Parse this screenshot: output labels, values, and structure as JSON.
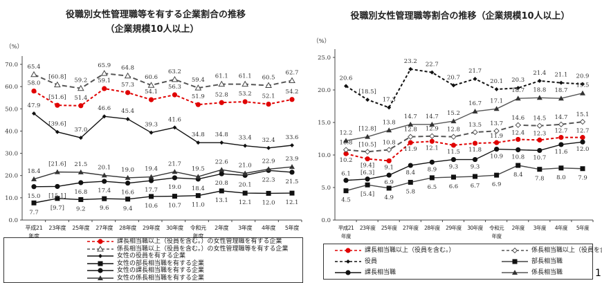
{
  "chart_data": [
    {
      "type": "line",
      "title": "役職別女性管理職等を有する企業割合の推移",
      "subtitle": "（企業規模10人以上）",
      "ylabel": "（%）",
      "ylim": [
        0,
        70
      ],
      "yticks": [
        "0.0",
        "10.0",
        "20.0",
        "30.0",
        "40.0",
        "50.0",
        "60.0",
        "70.0"
      ],
      "categories": [
        "平成21\n年度",
        "23年度",
        "25年度",
        "27年度",
        "28年度",
        "29年度",
        "30年度",
        "令和元\n年度",
        "2年度",
        "3年度",
        "4年度",
        "5年度"
      ],
      "legend_position": "bottom",
      "grid": false,
      "series": [
        {
          "name": "課長相当職以上（役員を含む。）の女性管理職を有する企業",
          "color": "#e00000",
          "dash": true,
          "marker": "circle-filled",
          "values": [
            58.0,
            51.6,
            51.4,
            59.1,
            57.3,
            54.1,
            56.3,
            51.9,
            52.8,
            53.2,
            52.1,
            54.2
          ],
          "labels": [
            "58.0",
            "[51.6]",
            "51.4",
            "59.1",
            "57.3",
            "54.1",
            "56.3",
            "51.9",
            "52.8",
            "53.2",
            "52.1",
            "54.2"
          ]
        },
        {
          "name": "係長相当職以上（役員を含む。）の女性管理職等を有する企業",
          "color": "#555555",
          "dash": true,
          "marker": "triangle-open",
          "values": [
            65.4,
            60.8,
            59.2,
            65.9,
            64.8,
            60.6,
            63.2,
            59.4,
            61.1,
            61.1,
            60.5,
            62.7
          ],
          "labels": [
            "65.4",
            "[60.8]",
            "59.2",
            "65.9",
            "64.8",
            "60.6",
            "63.2",
            "59.4",
            "61.1",
            "61.1",
            "60.5",
            "62.7"
          ]
        },
        {
          "name": "女性の役員を有する企業",
          "color": "#111111",
          "dash": false,
          "marker": "diamond-filled",
          "values": [
            47.9,
            39.6,
            37.0,
            46.6,
            45.4,
            39.3,
            41.6,
            34.8,
            34.8,
            33.4,
            32.4,
            33.6
          ],
          "labels": [
            "47.9",
            "[39.6]",
            "37.0",
            "46.6",
            "45.4",
            "39.3",
            "41.6",
            "34.8",
            "34.8",
            "33.4",
            "32.4",
            "33.6"
          ]
        },
        {
          "name": "女性の部長相当職を有する企業",
          "color": "#111111",
          "dash": false,
          "marker": "square-filled",
          "values": [
            7.7,
            9.7,
            9.2,
            9.6,
            9.4,
            10.6,
            10.7,
            11.0,
            13.1,
            12.1,
            12.0,
            12.1
          ],
          "labels": [
            "7.7",
            "[9.7]",
            "9.2",
            "9.6",
            "9.4",
            "10.6",
            "10.7",
            "11.0",
            "13.1",
            "12.1",
            "12.0",
            "12.1"
          ]
        },
        {
          "name": "女性の課長相当職を有する企業",
          "color": "#111111",
          "dash": false,
          "marker": "circle-filled",
          "values": [
            15.0,
            15.1,
            16.8,
            17.4,
            16.6,
            17.7,
            19.0,
            18.4,
            20.8,
            20.1,
            22.3,
            21.5
          ],
          "labels": [
            "15.0",
            "[15.1]",
            "16.8",
            "17.4",
            "16.6",
            "17.7",
            "19.0",
            "18.4",
            "20.8",
            "20.1",
            "22.3",
            "21.5"
          ]
        },
        {
          "name": "女性の係長相当職を有する企業",
          "color": "#333333",
          "dash": false,
          "marker": "triangle-filled",
          "values": [
            18.4,
            21.6,
            21.5,
            20.1,
            19.0,
            19.4,
            21.7,
            19.5,
            22.6,
            21.0,
            22.9,
            23.9
          ],
          "labels": [
            "18.4",
            "[21.6]",
            "21.5",
            "20.1",
            "19.0",
            "19.4",
            "21.7",
            "19.5",
            "22.6",
            "21.0",
            "22.9",
            "23.9"
          ]
        }
      ]
    },
    {
      "type": "line",
      "title": "役職別女性管理職等割合の推移（企業規模10人以上）",
      "ylabel": "（%）",
      "ylim": [
        0,
        25
      ],
      "yticks": [
        "0.0",
        "5.0",
        "10.0",
        "15.0",
        "20.0",
        "25.0"
      ],
      "categories": [
        "平成21\n年度",
        "23年度",
        "25年度",
        "27年度",
        "28年度",
        "29年度",
        "30年度",
        "令和元\n年度",
        "2年度",
        "3年度",
        "4年度",
        "5年度"
      ],
      "legend_position": "bottom",
      "grid": false,
      "series": [
        {
          "name": "課長相当職以上（役員を含む。）",
          "color": "#e00000",
          "dash": true,
          "marker": "circle-filled",
          "values": [
            10.2,
            9.4,
            9.1,
            11.9,
            12.1,
            11.5,
            11.8,
            11.9,
            12.4,
            12.3,
            12.7,
            12.7
          ],
          "labels": [
            "10.2",
            "[9.4]",
            "9.1",
            "11.9",
            "12.1",
            "11.5",
            "11.8",
            "11.9",
            "12.4",
            "12.3",
            "12.7",
            "12.7"
          ]
        },
        {
          "name": "係長相当職以上（役員を含む。）",
          "color": "#555555",
          "dash": true,
          "marker": "diamond-open",
          "values": [
            10.8,
            10.5,
            10.8,
            12.8,
            12.9,
            12.8,
            13.5,
            13.7,
            14.6,
            14.5,
            14.7,
            15.1
          ],
          "labels": [
            "10.8",
            "[10.5]",
            "10.8",
            "12.8",
            "12.9",
            "12.8",
            "13.5",
            "13.7",
            "14.6",
            "14.5",
            "14.7",
            "15.1"
          ]
        },
        {
          "name": "役員",
          "color": "#111111",
          "dash": true,
          "marker": "diamond-filled",
          "values": [
            20.6,
            18.5,
            17.3,
            23.2,
            22.7,
            20.7,
            21.7,
            20.1,
            20.3,
            21.4,
            21.1,
            20.9
          ],
          "labels": [
            "20.6",
            "[18.5]",
            "17.3",
            "23.2",
            "22.7",
            "20.7",
            "21.7",
            "20.1",
            "20.3",
            "21.4",
            "21.1",
            "20.9"
          ]
        },
        {
          "name": "部長相当職",
          "color": "#444444",
          "dash": false,
          "marker": "square-filled",
          "values": [
            4.5,
            5.4,
            4.9,
            5.8,
            6.5,
            6.6,
            6.7,
            6.9,
            8.4,
            7.8,
            8.0,
            7.9
          ],
          "labels": [
            "4.5",
            "[5.4]",
            "4.9",
            "5.8",
            "6.5",
            "6.6",
            "6.7",
            "6.9",
            "8.4",
            "7.8",
            "8.0",
            "7.9"
          ]
        },
        {
          "name": "課長相当職",
          "color": "#111111",
          "dash": false,
          "marker": "circle-filled",
          "values": [
            6.1,
            6.3,
            6.9,
            8.4,
            8.9,
            9.3,
            9.3,
            10.9,
            10.8,
            10.7,
            11.6,
            12.0
          ],
          "labels": [
            "6.1",
            "[6.3]",
            "6.9",
            "8.4",
            "8.9",
            "9.3",
            "9.3",
            "10.9",
            "10.8",
            "10.7",
            "11.6",
            "12.0"
          ]
        },
        {
          "name": "係長相当職",
          "color": "#555555",
          "dash": false,
          "marker": "triangle-filled",
          "values": [
            12.2,
            12.8,
            13.8,
            14.7,
            14.7,
            15.2,
            16.7,
            17.1,
            18.7,
            18.8,
            18.7,
            19.5
          ],
          "labels": [
            "12.2",
            "[12.8]",
            "13.8",
            "14.7",
            "14.7",
            "15.2",
            "16.7",
            "17.1",
            "18.7",
            "18.8",
            "18.7",
            "19.5"
          ]
        }
      ]
    }
  ],
  "page_number": "1"
}
